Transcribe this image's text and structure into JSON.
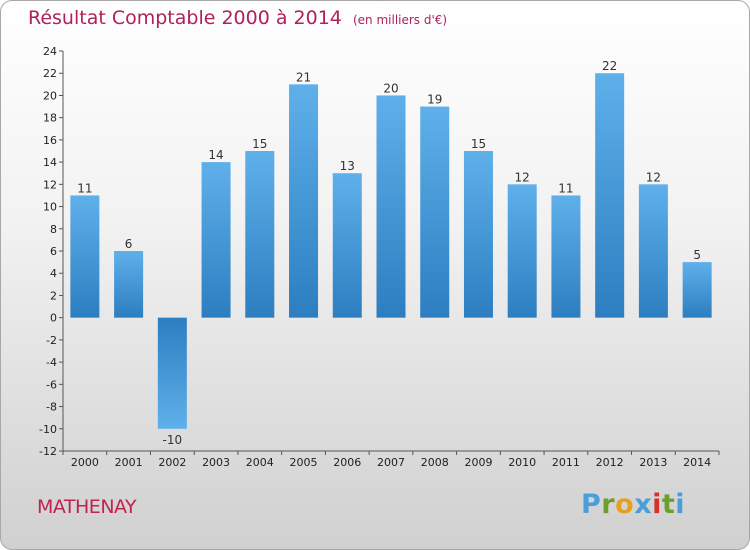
{
  "chart_data": {
    "type": "bar",
    "title": "Résultat Comptable 2000 à 2014",
    "subtitle": "(en milliers d'€)",
    "categories": [
      "2000",
      "2001",
      "2002",
      "2003",
      "2004",
      "2005",
      "2006",
      "2007",
      "2008",
      "2009",
      "2010",
      "2011",
      "2012",
      "2013",
      "2014"
    ],
    "values": [
      11,
      6,
      -10,
      14,
      15,
      21,
      13,
      20,
      19,
      15,
      12,
      11,
      22,
      12,
      5
    ],
    "data_labels": [
      "11",
      "6",
      "-10",
      "14",
      "15",
      "21",
      "13",
      "20",
      "19",
      "15",
      "12",
      "11",
      "22",
      "12",
      "5"
    ],
    "ylim": [
      -12,
      24
    ],
    "yticks": [
      -12,
      -10,
      -8,
      -6,
      -4,
      -2,
      0,
      2,
      4,
      6,
      8,
      10,
      12,
      14,
      16,
      18,
      20,
      22,
      24
    ],
    "xlabel": "",
    "ylabel": "",
    "grid": false
  },
  "footer": {
    "commune": "MATHENAY"
  },
  "logo": {
    "letters": [
      "P",
      "r",
      "o",
      "x",
      "i",
      "t",
      "i"
    ],
    "colors": [
      "#4a9fd8",
      "#6a9f2a",
      "#e8a020",
      "#4a9fd8",
      "#d8302a",
      "#6a9f2a",
      "#4a9fd8"
    ]
  },
  "colors": {
    "title": "#b0205c",
    "commune": "#c0244c",
    "bar_light": "#5fb0ea",
    "bar_dark": "#2c7ec0"
  }
}
